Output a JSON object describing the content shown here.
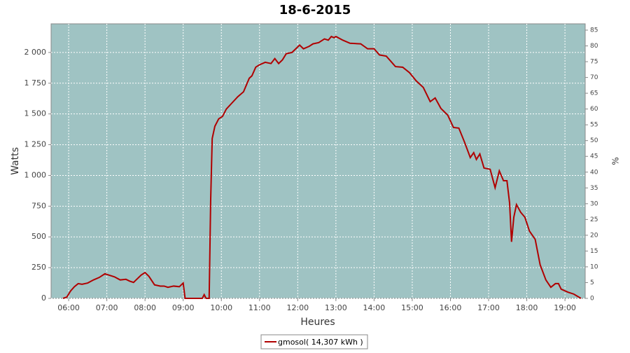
{
  "chart_data": {
    "type": "line",
    "title": "18-6-2015",
    "xlabel": "Heures",
    "ylabel": "Watts",
    "y2label": "%",
    "x": [
      5.85,
      5.95,
      6.05,
      6.15,
      6.25,
      6.35,
      6.5,
      6.65,
      6.8,
      6.95,
      7.05,
      7.2,
      7.35,
      7.5,
      7.6,
      7.7,
      7.75,
      7.9,
      8.0,
      8.1,
      8.25,
      8.4,
      8.5,
      8.6,
      8.75,
      8.9,
      9.0,
      9.05,
      9.4,
      9.5,
      9.55,
      9.6,
      9.68,
      9.72,
      9.76,
      9.83,
      9.93,
      10.03,
      10.13,
      10.28,
      10.43,
      10.58,
      10.73,
      10.8,
      10.9,
      11.0,
      11.15,
      11.3,
      11.4,
      11.5,
      11.6,
      11.7,
      11.85,
      11.95,
      12.05,
      12.15,
      12.3,
      12.4,
      12.55,
      12.7,
      12.8,
      12.88,
      12.95,
      13.0,
      13.18,
      13.37,
      13.65,
      13.83,
      14.0,
      14.14,
      14.32,
      14.56,
      14.75,
      14.93,
      15.1,
      15.29,
      15.47,
      15.6,
      15.75,
      15.93,
      16.08,
      16.22,
      16.37,
      16.52,
      16.61,
      16.68,
      16.77,
      16.88,
      17.04,
      17.17,
      17.28,
      17.39,
      17.48,
      17.55,
      17.6,
      17.66,
      17.73,
      17.84,
      17.95,
      18.07,
      18.22,
      18.35,
      18.5,
      18.63,
      18.75,
      18.83,
      18.9,
      19.08,
      19.23,
      19.42
    ],
    "series": [
      {
        "name": "gmosol( 14,307 kWh )",
        "color": "#b00000",
        "values": [
          0,
          10,
          60,
          95,
          120,
          115,
          125,
          150,
          170,
          200,
          190,
          175,
          150,
          155,
          140,
          130,
          145,
          190,
          210,
          180,
          110,
          100,
          100,
          90,
          100,
          95,
          125,
          0,
          0,
          0,
          30,
          0,
          0,
          800,
          1300,
          1400,
          1460,
          1480,
          1540,
          1590,
          1640,
          1680,
          1790,
          1810,
          1880,
          1900,
          1920,
          1910,
          1950,
          1910,
          1940,
          1990,
          2000,
          2030,
          2060,
          2030,
          2050,
          2070,
          2080,
          2110,
          2100,
          2130,
          2120,
          2130,
          2100,
          2075,
          2070,
          2030,
          2030,
          1980,
          1970,
          1885,
          1880,
          1835,
          1770,
          1715,
          1600,
          1630,
          1545,
          1490,
          1390,
          1385,
          1270,
          1145,
          1185,
          1130,
          1175,
          1060,
          1050,
          900,
          1037,
          957,
          957,
          775,
          460,
          660,
          763,
          700,
          660,
          547,
          480,
          273,
          150,
          90,
          120,
          120,
          75,
          50,
          35,
          0
        ]
      }
    ],
    "xlim": [
      5.54,
      19.53
    ],
    "xticks": [
      {
        "value": 6,
        "label": "06:00"
      },
      {
        "value": 7,
        "label": "07:00"
      },
      {
        "value": 8,
        "label": "08:00"
      },
      {
        "value": 9,
        "label": "09:00"
      },
      {
        "value": 10,
        "label": "10:00"
      },
      {
        "value": 11,
        "label": "11:00"
      },
      {
        "value": 12,
        "label": "12:00"
      },
      {
        "value": 13,
        "label": "13:00"
      },
      {
        "value": 14,
        "label": "14:00"
      },
      {
        "value": 15,
        "label": "15:00"
      },
      {
        "value": 16,
        "label": "16:00"
      },
      {
        "value": 17,
        "label": "17:00"
      },
      {
        "value": 18,
        "label": "18:00"
      },
      {
        "value": 19,
        "label": "19:00"
      }
    ],
    "ylim": [
      0,
      2233
    ],
    "yticks": [
      0,
      250,
      500,
      750,
      {
        "value": 1000,
        "label": "1 000"
      },
      {
        "value": 1250,
        "label": "1 250"
      },
      {
        "value": 1500,
        "label": "1 500"
      },
      {
        "value": 1750,
        "label": "1 750"
      },
      {
        "value": 2000,
        "label": "2 000"
      }
    ],
    "y2lim": [
      0,
      87
    ],
    "y2ticks": [
      0,
      5,
      10,
      15,
      20,
      25,
      30,
      35,
      40,
      45,
      50,
      55,
      60,
      65,
      70,
      75,
      80,
      85
    ],
    "grid": true
  }
}
